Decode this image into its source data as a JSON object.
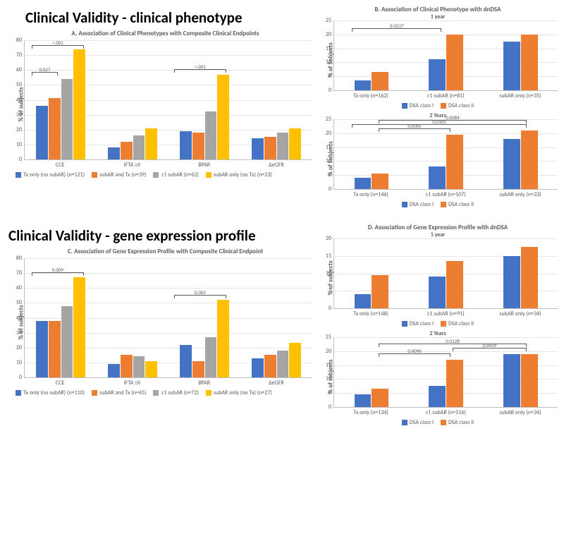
{
  "colors": {
    "blue": "#4472c4",
    "orange": "#ed7d31",
    "gray": "#a5a5a5",
    "yellow": "#ffc000",
    "grid": "#e6e6e6",
    "axis": "#bfbfbf",
    "text": "#595959"
  },
  "section1_title": "Clinical Validity - clinical phenotype",
  "section2_title": "Clinical Validity - gene expression profile",
  "panelA": {
    "title": "A. Association of Clinical Phenotypes with Composite Clinical Endpoints",
    "ylabel": "% of subjects",
    "ymax": 80,
    "ytick_step": 10,
    "categories": [
      "CCE",
      "IFTA ≥II",
      "BPAR",
      "ΔeGFR"
    ],
    "series": [
      {
        "label": "Tx only (no subAR) (n=121)",
        "color": "#4472c4",
        "values": [
          36,
          8,
          19,
          14
        ]
      },
      {
        "label": "subAR and Tx (n=39)",
        "color": "#ed7d31",
        "values": [
          41,
          12,
          18,
          15
        ]
      },
      {
        "label": "≥1 subAR (n=62)",
        "color": "#a5a5a5",
        "values": [
          54,
          16,
          32,
          18
        ]
      },
      {
        "label": "subAR only (no Tx) (n=23)",
        "color": "#ffc000",
        "values": [
          74,
          21,
          57,
          21
        ]
      }
    ],
    "annots": [
      {
        "text": "<.001",
        "left_pct": 2.5,
        "width_pct": 18,
        "y_val": 76
      },
      {
        "text": "0.027",
        "left_pct": 2.5,
        "width_pct": 9,
        "y_val": 58
      },
      {
        "text": "<.001",
        "left_pct": 52,
        "width_pct": 18,
        "y_val": 60
      }
    ]
  },
  "panelB": {
    "title": "B. Association of Clinical Phenotype with dnDSA",
    "subtitle1": "1 year",
    "subtitle2": "2 Years",
    "ylabel": "% of Subjects",
    "legend": [
      {
        "label": "DSA class I",
        "color": "#4472c4"
      },
      {
        "label": "DSA class II",
        "color": "#ed7d31"
      }
    ],
    "chart1": {
      "ymax": 25,
      "ytick_step": 5,
      "categories": [
        "Tx only (n=162)",
        "≥1 subAR (n=81)",
        "subAR only (n=35)"
      ],
      "values_blue": [
        3.5,
        11,
        17.5
      ],
      "values_orange": [
        6.5,
        20,
        20
      ],
      "annots": [
        {
          "text": "0.0237",
          "left_pct": 8,
          "width_pct": 40,
          "y_val": 22
        }
      ]
    },
    "chart2": {
      "ymax": 25,
      "ytick_step": 5,
      "categories": [
        "Tx only (n=146)",
        "≥1 subAR (n=107)",
        "subAR only (n=33)"
      ],
      "values_blue": [
        4,
        8,
        18
      ],
      "values_orange": [
        5.5,
        19.5,
        21
      ],
      "annots": [
        {
          "text": "0.0084",
          "left_pct": 20,
          "width_pct": 66,
          "y_val": 24.5
        },
        {
          "text": "0.0103",
          "left_pct": 8,
          "width_pct": 78,
          "y_val": 23
        },
        {
          "text": "0.0005",
          "left_pct": 20,
          "width_pct": 32,
          "y_val": 21.5
        }
      ]
    }
  },
  "panelC": {
    "title": "C. Association of Gene Expression Profile with Composite Clinical Endpoint",
    "ylabel": "% of subjects",
    "ymax": 80,
    "ytick_step": 10,
    "categories": [
      "CCE",
      "IFTA ≥II",
      "BPAR",
      "ΔeGFR"
    ],
    "series": [
      {
        "label": "Tx only (no subAR) (n=110)",
        "color": "#4472c4",
        "values": [
          38,
          9,
          22,
          13
        ]
      },
      {
        "label": "subAR and Tx (n=45)",
        "color": "#ed7d31",
        "values": [
          38,
          15,
          11,
          15
        ]
      },
      {
        "label": "≥1 subAR (n=72)",
        "color": "#a5a5a5",
        "values": [
          48,
          14,
          27,
          18
        ]
      },
      {
        "label": "subAR only (no Tx) (n=27)",
        "color": "#ffc000",
        "values": [
          67,
          11,
          52,
          23
        ]
      }
    ],
    "annots": [
      {
        "text": "0.009",
        "left_pct": 2.5,
        "width_pct": 18,
        "y_val": 70
      },
      {
        "text": "0.003",
        "left_pct": 52,
        "width_pct": 18,
        "y_val": 55
      }
    ]
  },
  "panelD": {
    "title": "D. Association of Gene Expression Profile with dnDSA",
    "subtitle1": "1 year",
    "subtitle2": "2 Years",
    "ylabel": "% of subjects",
    "legend": [
      {
        "label": "DSA class I",
        "color": "#4472c4"
      },
      {
        "label": "DSA class II",
        "color": "#ed7d31"
      }
    ],
    "chart1": {
      "ymax": 20,
      "ytick_step": 5,
      "categories": [
        "Tx only (n=148)",
        "≥1 subAR (n=91)",
        "subAR only (n=34)"
      ],
      "values_blue": [
        4,
        9,
        15
      ],
      "values_orange": [
        9.5,
        13.5,
        17.5
      ],
      "annots": []
    },
    "chart2": {
      "ymax": 25,
      "ytick_step": 5,
      "categories": [
        "Tx only (n=134)",
        "≥1 subAR (n=116)",
        "subAR only (n=34)"
      ],
      "values_blue": [
        4.5,
        7.5,
        19
      ],
      "values_orange": [
        6.5,
        17,
        19
      ],
      "annots": [
        {
          "text": "0.0128",
          "left_pct": 20,
          "width_pct": 66,
          "y_val": 22.5
        },
        {
          "text": "0.0439",
          "left_pct": 53,
          "width_pct": 33,
          "y_val": 21
        },
        {
          "text": "0.0096",
          "left_pct": 20,
          "width_pct": 32,
          "y_val": 19
        }
      ]
    }
  }
}
